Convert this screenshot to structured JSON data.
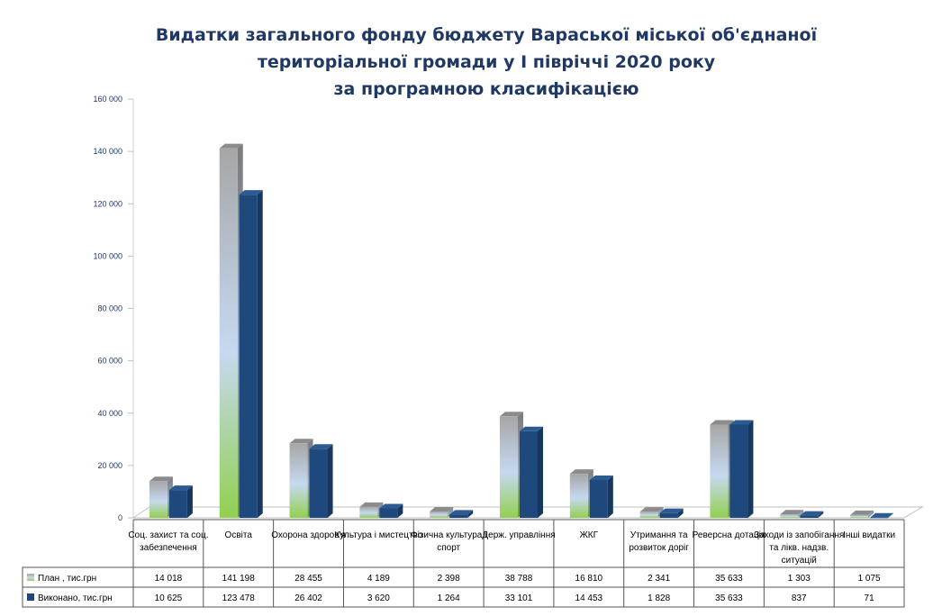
{
  "title_lines": [
    "Видатки загального фонду бюджету Вараської міської об'єднаної",
    "територіальної громади у І півріччі 2020 року",
    "за програмною класифікацією"
  ],
  "chart_data": {
    "type": "bar",
    "title": "Видатки загального фонду бюджету Вараської міської об'єднаної територіальної громади у І півріччі 2020 року за програмною класифікацією",
    "categories": [
      [
        "Соц. захист та соц.",
        "забезпечення"
      ],
      [
        "Освіта"
      ],
      [
        "Охорона здоров'я"
      ],
      [
        "Культура і мистецтво"
      ],
      [
        "Фізична культура і",
        "спорт"
      ],
      [
        "Держ. управління"
      ],
      [
        "ЖКГ"
      ],
      [
        "Утримання та",
        "розвиток доріг"
      ],
      [
        "Реверсна дотація"
      ],
      [
        "Заходи із запобігання",
        "та лікв. надзв.",
        "ситуацій"
      ],
      [
        "Інші видатки"
      ]
    ],
    "series": [
      {
        "name": "План , тис.грн",
        "values": [
          14018,
          141198,
          28455,
          4189,
          2398,
          38788,
          16810,
          2341,
          35633,
          1303,
          1075
        ]
      },
      {
        "name": "Виконано, тис.грн",
        "values": [
          10625,
          123478,
          26402,
          3620,
          1264,
          33101,
          14453,
          1828,
          35633,
          837,
          71
        ]
      }
    ],
    "value_labels": [
      [
        "14 018",
        "141 198",
        "28 455",
        "4 189",
        "2 398",
        "38 788",
        "16 810",
        "2 341",
        "35 633",
        "1 303",
        "1 075"
      ],
      [
        "10 625",
        "123 478",
        "26 402",
        "3 620",
        "1 264",
        "33 101",
        "14 453",
        "1 828",
        "35 633",
        "837",
        "71"
      ]
    ],
    "ylim": [
      0,
      160000
    ],
    "yticks": [
      0,
      20000,
      40000,
      60000,
      80000,
      100000,
      120000,
      140000,
      160000
    ],
    "ytick_labels": [
      "0",
      "20 000",
      "40 000",
      "60 000",
      "80 000",
      "100 000",
      "120 000",
      "140 000",
      "160 000"
    ],
    "legend": "data table below chart",
    "colors": {
      "plan_top": "#a6a6a6",
      "plan_mid": "#c6d9f1",
      "plan_bottom": "#92d050",
      "done": "#1f497d",
      "done_side": "#17375e",
      "title": "#1f3864",
      "tick": "#1f3864"
    }
  }
}
